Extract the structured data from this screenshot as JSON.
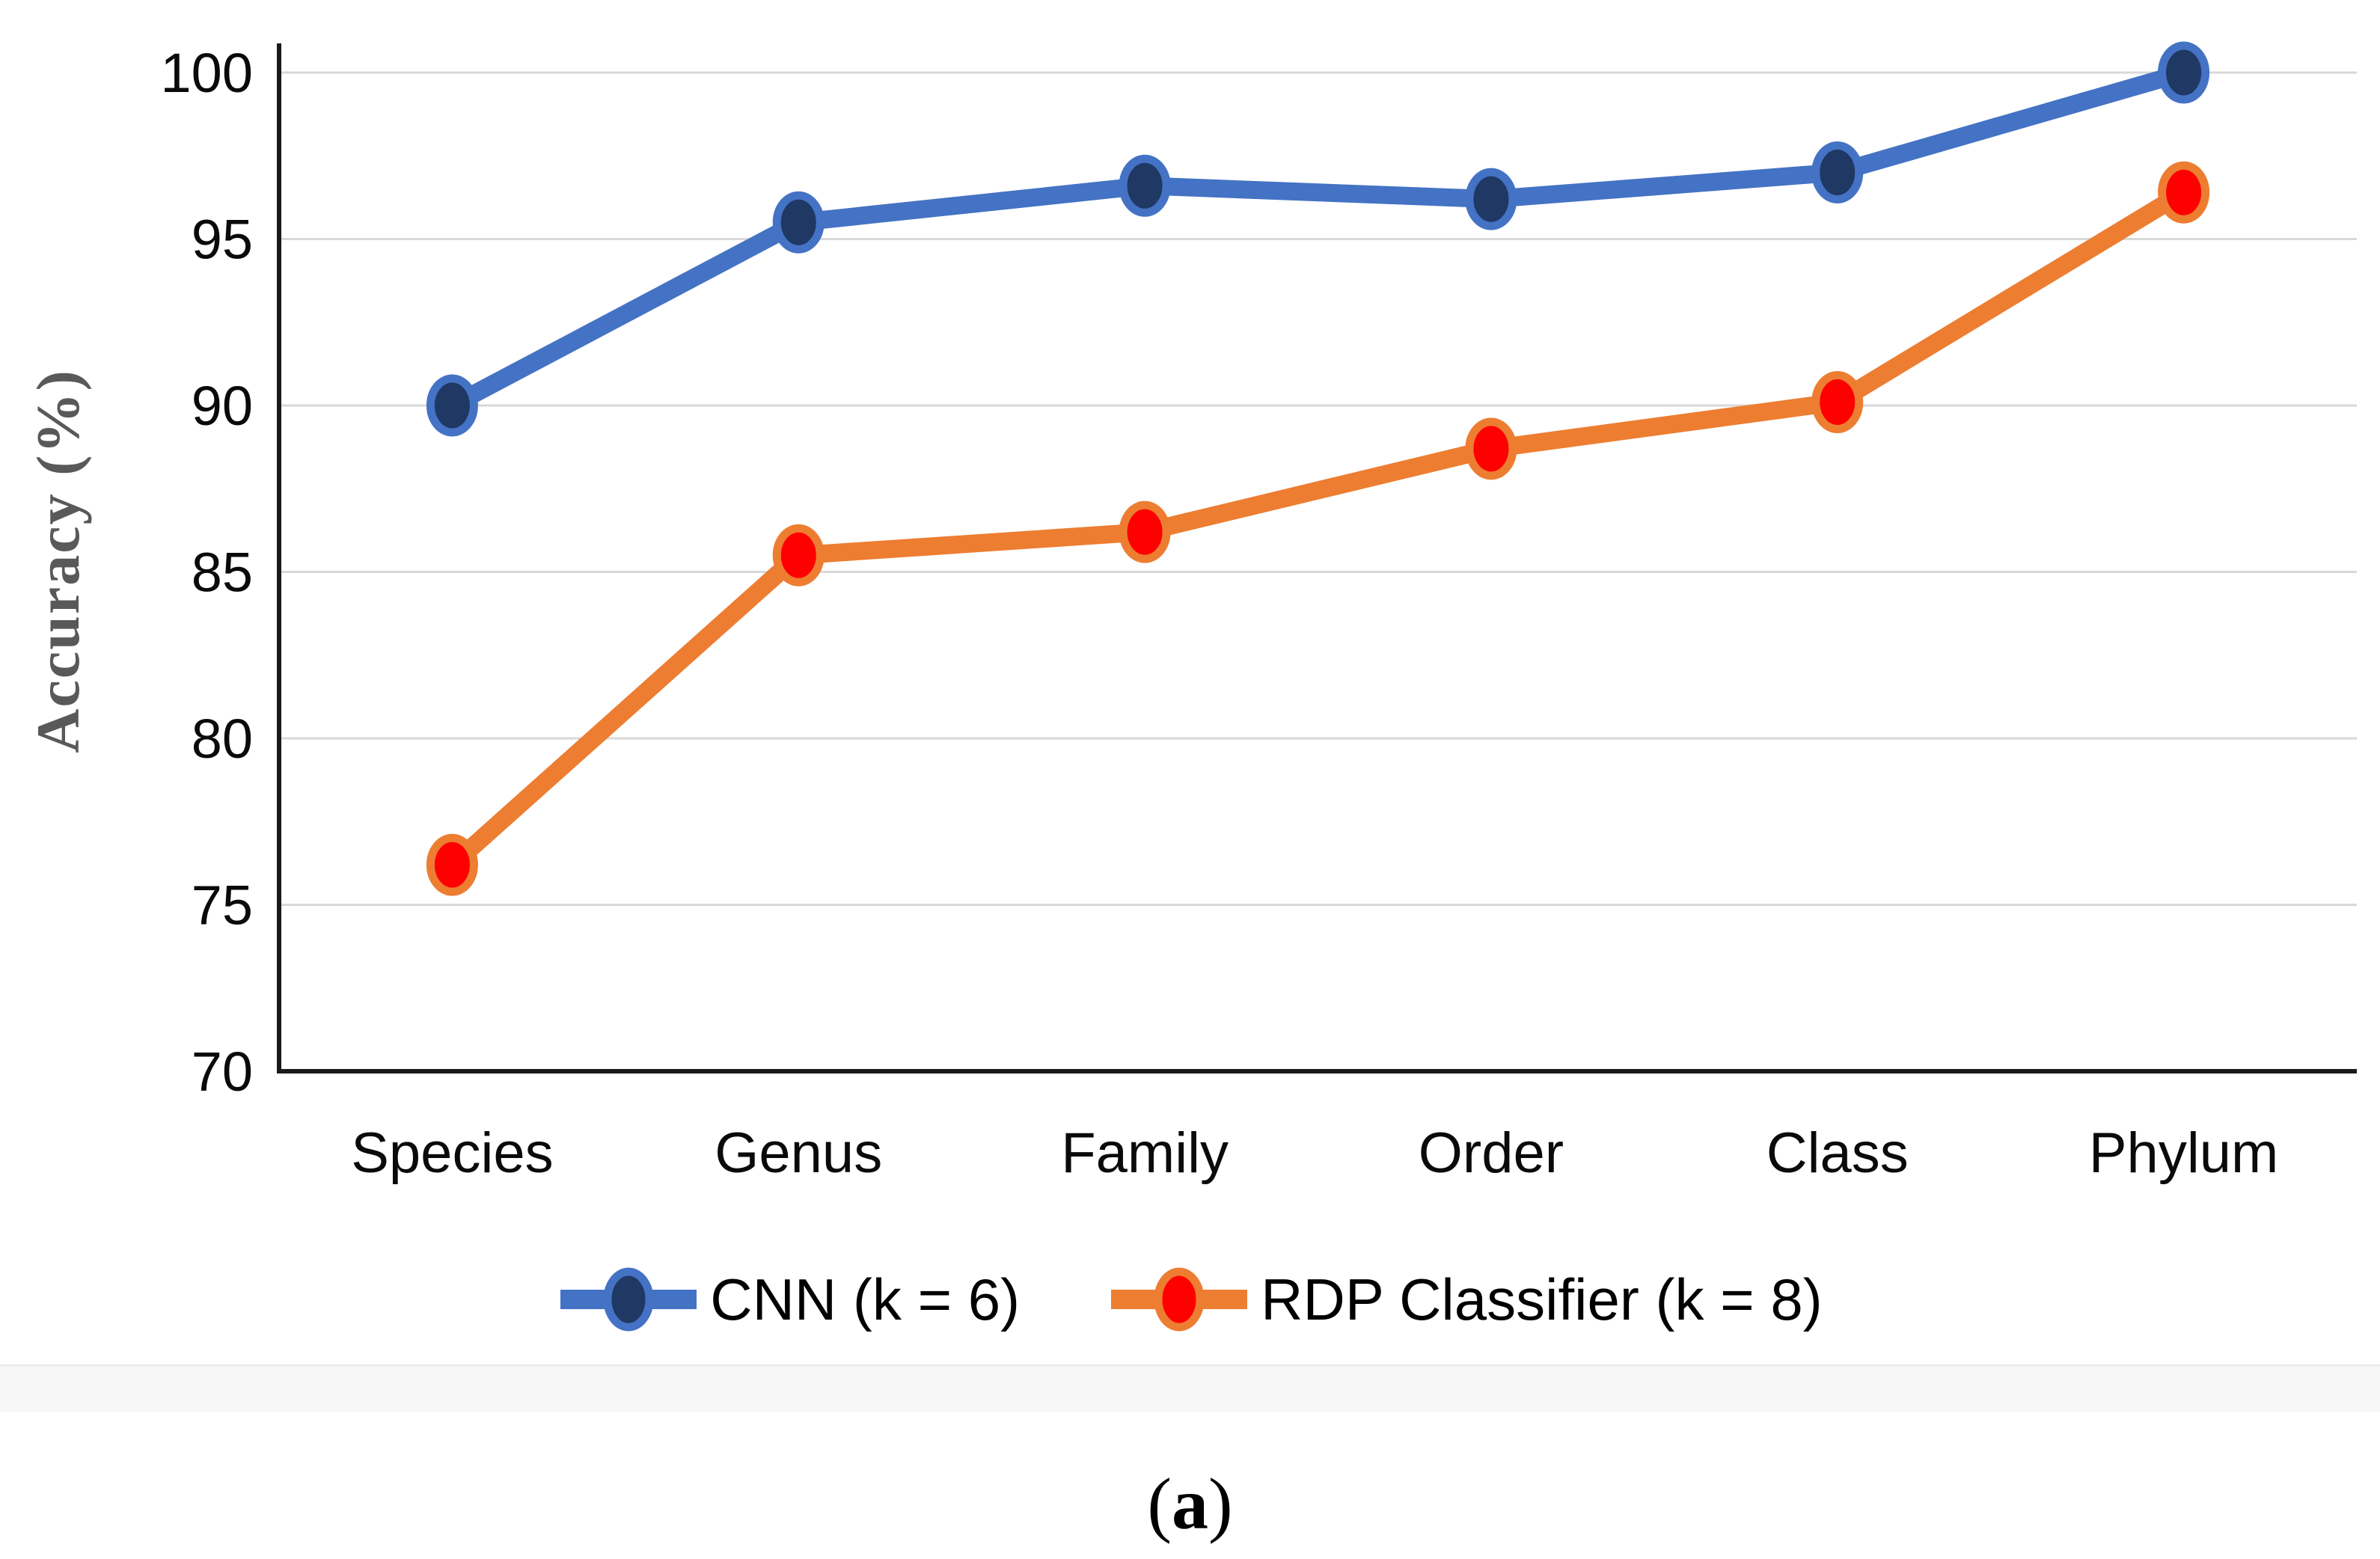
{
  "figure": {
    "caption_open": "(",
    "caption_letter": "a",
    "caption_close": ")"
  },
  "chart_data": {
    "type": "line",
    "categories": [
      "Species",
      "Genus",
      "Family",
      "Order",
      "Class",
      "Phylum"
    ],
    "series": [
      {
        "name": "CNN (k = 6)",
        "values": [
          90.0,
          95.5,
          96.6,
          96.2,
          97.0,
          100.0
        ],
        "line_color": "#4472C4",
        "marker_color": "#1F3864"
      },
      {
        "name": "RDP Classifier (k = 8)",
        "values": [
          76.2,
          85.5,
          86.2,
          88.7,
          90.1,
          96.4
        ],
        "line_color": "#ED7D31",
        "marker_color": "#FF0000"
      }
    ],
    "title": "",
    "xlabel": "",
    "ylabel": "Accuracy (%)",
    "ylim": [
      70,
      100
    ],
    "y_ticks": [
      100,
      95,
      90,
      85,
      80,
      75,
      70
    ],
    "grid": "horizontal",
    "gridline_color": "#D9D9D9",
    "axis_color": "#1a1a1a",
    "tick_label_color": "#0a0a0a",
    "legend_position": "bottom"
  }
}
